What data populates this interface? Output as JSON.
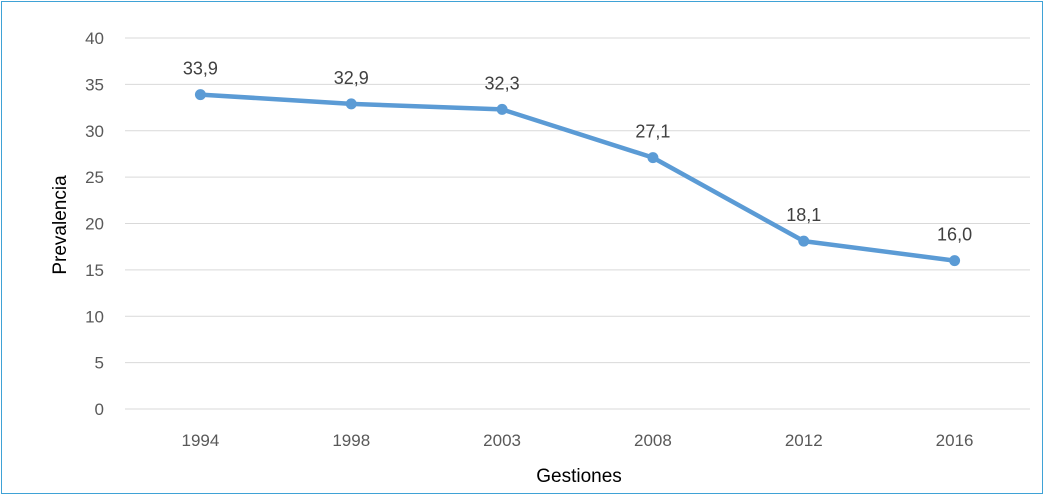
{
  "chart_data": {
    "type": "line",
    "title": "",
    "xlabel": "Gestiones",
    "ylabel": "Prevalencia",
    "categories": [
      "1994",
      "1998",
      "2003",
      "2008",
      "2012",
      "2016"
    ],
    "series": [
      {
        "values": [
          33.9,
          32.9,
          32.3,
          27.1,
          18.1,
          16.0
        ],
        "labels": [
          "33,9",
          "32,9",
          "32,3",
          "27,1",
          "18,1",
          "16,0"
        ],
        "color": "#5b9bd5"
      }
    ],
    "ylim": [
      0,
      40
    ],
    "yticks": [
      "0",
      "5",
      "10",
      "15",
      "20",
      "25",
      "30",
      "35",
      "40"
    ],
    "grid": true,
    "gridColor": "#d9d9d9",
    "legend": "none"
  }
}
